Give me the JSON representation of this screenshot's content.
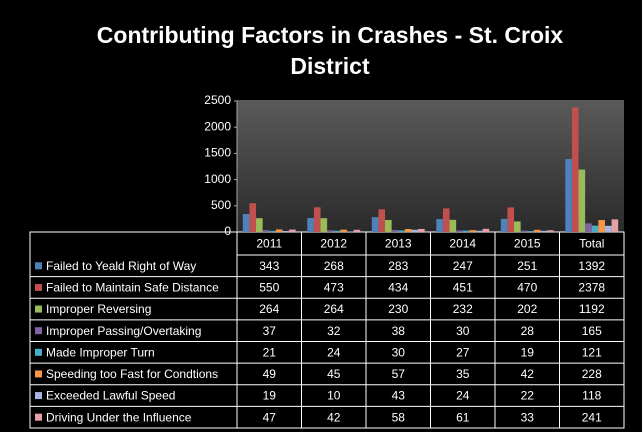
{
  "chart_data": {
    "type": "bar",
    "title": "Contributing Factors in Crashes - St. Croix District",
    "categories": [
      "2011",
      "2012",
      "2013",
      "2014",
      "2015",
      "Total"
    ],
    "ylim": [
      0,
      2500
    ],
    "yticks": [
      0,
      500,
      1000,
      1500,
      2000,
      2500
    ],
    "series": [
      {
        "name": "Failed to Yeald Right of Way",
        "color": "#4f81bd",
        "values": [
          343,
          268,
          283,
          247,
          251,
          1392
        ]
      },
      {
        "name": "Failed to Maintain Safe Distance",
        "color": "#c0504d",
        "values": [
          550,
          473,
          434,
          451,
          470,
          2378
        ]
      },
      {
        "name": "Improper Reversing",
        "color": "#9bbb59",
        "values": [
          264,
          264,
          230,
          232,
          202,
          1192
        ]
      },
      {
        "name": "Improper Passing/Overtaking",
        "color": "#8064a2",
        "values": [
          37,
          32,
          38,
          30,
          28,
          165
        ]
      },
      {
        "name": "Made Improper Turn",
        "color": "#4bacc6",
        "values": [
          21,
          24,
          30,
          27,
          19,
          121
        ]
      },
      {
        "name": "Speeding too Fast for Condtions",
        "color": "#f79646",
        "values": [
          49,
          45,
          57,
          35,
          42,
          228
        ]
      },
      {
        "name": "Exceeded Lawful Speed",
        "color": "#a5b6e0",
        "values": [
          19,
          10,
          43,
          24,
          22,
          118
        ]
      },
      {
        "name": "Driving Under the Influence",
        "color": "#e6a0a8",
        "values": [
          47,
          42,
          58,
          61,
          33,
          241
        ]
      }
    ]
  }
}
